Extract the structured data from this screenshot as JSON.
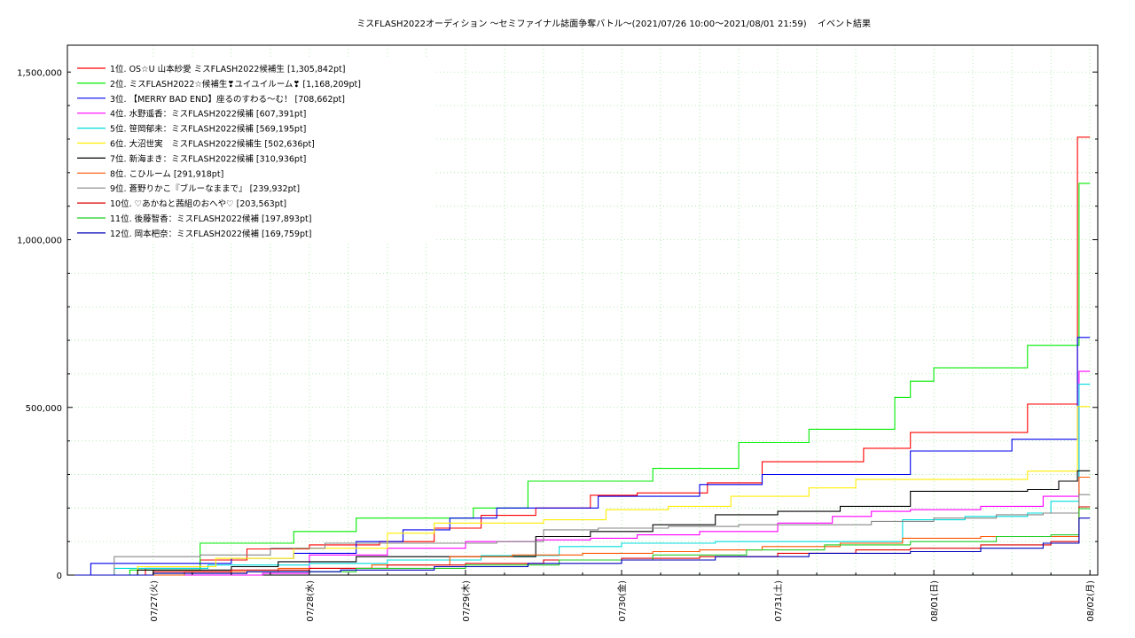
{
  "chart_data": {
    "type": "line",
    "title": "ミスFLASH2022オーディション 〜セミファイナル誌面争奪バトル〜(2021/07/26 10:00〜2021/08/01 21:59)",
    "subtitle": "イベント結果",
    "xlabel": "",
    "ylabel": "",
    "categories": [
      "07/27(火)",
      "07/28(水)",
      "07/29(木)",
      "07/30(金)",
      "07/31(土)",
      "08/01(日)",
      "08/02(月)"
    ],
    "xlim": [
      0.45,
      7.05
    ],
    "ylim": [
      0,
      1580000
    ],
    "y_ticks": [
      0,
      500000,
      1000000,
      1500000
    ],
    "y_tick_labels": [
      "0",
      "500,000",
      "1,000,000",
      "1,500,000"
    ],
    "grid": true,
    "legend_position": "top-left",
    "series": [
      {
        "name": "1位. OS☆U 山本紗愛 ミスFLASH2022候補生 [1,305,842pt]",
        "color": "#ff0000",
        "x": [
          0.5,
          0.95,
          1.3,
          1.6,
          2.0,
          2.45,
          2.8,
          3.1,
          3.45,
          3.8,
          4.1,
          4.55,
          4.9,
          5.2,
          5.55,
          5.85,
          6.3,
          6.6,
          6.75,
          6.92,
          7.0
        ],
        "y": [
          0,
          20000,
          45000,
          78000,
          90000,
          100000,
          140000,
          178000,
          200000,
          238000,
          245000,
          275000,
          338000,
          338000,
          378000,
          425000,
          425000,
          510000,
          510000,
          1305842,
          1305842
        ]
      },
      {
        "name": "2位. ミスFLASH2022☆候補生❣ユイユイルーム❣ [1,168,209pt]",
        "color": "#00ee00",
        "x": [
          0.5,
          0.85,
          1.3,
          1.55,
          1.9,
          2.3,
          2.9,
          3.05,
          3.4,
          3.8,
          4.2,
          4.5,
          4.75,
          5.2,
          5.75,
          5.85,
          6.0,
          6.2,
          6.6,
          6.7,
          6.9,
          6.93,
          7.0
        ],
        "y": [
          0,
          15000,
          95000,
          95000,
          130000,
          170000,
          170000,
          200000,
          280000,
          280000,
          318000,
          318000,
          395000,
          435000,
          530000,
          578000,
          618000,
          618000,
          685000,
          685000,
          685000,
          1168209,
          1168209
        ]
      },
      {
        "name": "3位. 【MERRY BAD END】座るのすわる〜む！ [708,662pt]",
        "color": "#0000ee",
        "x": [
          0.5,
          0.6,
          1.0,
          1.5,
          1.9,
          2.3,
          2.6,
          2.9,
          3.2,
          3.5,
          3.85,
          4.2,
          4.5,
          4.9,
          5.2,
          5.55,
          5.85,
          6.1,
          6.5,
          6.75,
          6.92,
          7.0
        ],
        "y": [
          0,
          35000,
          35000,
          50000,
          65000,
          100000,
          135000,
          170000,
          200000,
          200000,
          235000,
          235000,
          270000,
          300000,
          300000,
          300000,
          370000,
          370000,
          405000,
          405000,
          708662,
          708662
        ]
      },
      {
        "name": "4位. 水野遥香：ミスFLASH2022候補 [607,391pt]",
        "color": "#ff00ff",
        "x": [
          0.5,
          1.7,
          2.0,
          2.5,
          3.0,
          3.45,
          3.8,
          4.1,
          4.5,
          5.0,
          5.35,
          5.6,
          5.85,
          6.3,
          6.7,
          6.93,
          7.0
        ],
        "y": [
          0,
          5000,
          60000,
          80000,
          100000,
          105000,
          110000,
          120000,
          130000,
          155000,
          175000,
          190000,
          195000,
          205000,
          235000,
          607391,
          607391
        ]
      },
      {
        "name": "5位. 笹岡郁未：ミスFLASH2022候補 [569,195pt]",
        "color": "#00dddd",
        "x": [
          0.5,
          0.75,
          1.35,
          2.0,
          2.5,
          3.1,
          3.6,
          4.0,
          4.6,
          5.0,
          5.4,
          5.8,
          6.2,
          6.6,
          6.75,
          6.93,
          7.0
        ],
        "y": [
          0,
          20000,
          30000,
          35000,
          45000,
          58000,
          85000,
          95000,
          100000,
          100000,
          100000,
          165000,
          175000,
          185000,
          220000,
          569195,
          569195
        ]
      },
      {
        "name": "6位. 大沼世実　ミスFLASH2022候補生 [502,636pt]",
        "color": "#ffee00",
        "x": [
          0.5,
          0.9,
          1.4,
          1.9,
          2.5,
          2.8,
          3.2,
          3.5,
          3.9,
          4.3,
          4.7,
          5.2,
          5.5,
          5.85,
          6.3,
          6.6,
          6.75,
          6.92,
          7.0
        ],
        "y": [
          0,
          25000,
          50000,
          80000,
          125000,
          155000,
          155000,
          165000,
          195000,
          205000,
          235000,
          260000,
          285000,
          285000,
          285000,
          310000,
          310000,
          502636,
          502636
        ]
      },
      {
        "name": "7位. 新海まき：ミスFLASH2022候補 [310,936pt]",
        "color": "#000000",
        "x": [
          0.5,
          0.9,
          1.5,
          1.8,
          2.3,
          2.9,
          3.45,
          3.8,
          4.2,
          4.6,
          5.0,
          5.4,
          5.85,
          6.3,
          6.6,
          6.8,
          6.92,
          7.0
        ],
        "y": [
          0,
          15000,
          25000,
          40000,
          55000,
          55000,
          115000,
          130000,
          150000,
          180000,
          190000,
          205000,
          250000,
          250000,
          255000,
          280000,
          310936,
          310936
        ]
      },
      {
        "name": "8位. こひルーム [291,918pt]",
        "color": "#ff5500",
        "x": [
          0.5,
          1.2,
          1.8,
          2.4,
          2.9,
          3.3,
          3.75,
          4.2,
          4.5,
          4.9,
          5.4,
          5.8,
          6.3,
          6.6,
          6.7,
          6.93,
          7.0
        ],
        "y": [
          0,
          10000,
          20000,
          30000,
          55000,
          60000,
          65000,
          70000,
          75000,
          85000,
          95000,
          110000,
          115000,
          115000,
          115000,
          291918,
          291918
        ]
      },
      {
        "name": "9位. 蒼野りかこ『ブルーなままで』 [239,932pt]",
        "color": "#888888",
        "x": [
          0.5,
          0.75,
          1.3,
          1.75,
          2.1,
          2.6,
          3.2,
          3.5,
          3.85,
          4.3,
          4.75,
          5.2,
          5.6,
          6.0,
          6.4,
          6.7,
          6.93,
          7.0
        ],
        "y": [
          0,
          55000,
          60000,
          80000,
          95000,
          95000,
          100000,
          135000,
          140000,
          145000,
          150000,
          150000,
          160000,
          170000,
          180000,
          185000,
          239932,
          239932
        ]
      },
      {
        "name": "10位. ♡あかねと茜組のおへや♡ [203,563pt]",
        "color": "#dd0000",
        "x": [
          0.5,
          1.0,
          1.5,
          2.0,
          2.5,
          3.0,
          3.5,
          4.0,
          4.5,
          5.0,
          5.5,
          5.85,
          6.3,
          6.75,
          6.93,
          7.0
        ],
        "y": [
          0,
          10000,
          15000,
          20000,
          30000,
          35000,
          45000,
          50000,
          55000,
          65000,
          75000,
          80000,
          90000,
          100000,
          203563,
          203563
        ]
      },
      {
        "name": "11位. 後藤智香：ミスFLASH2022候補 [197,893pt]",
        "color": "#22cc22",
        "x": [
          0.5,
          1.0,
          1.6,
          2.3,
          3.0,
          3.6,
          4.2,
          4.8,
          5.3,
          5.85,
          6.4,
          6.75,
          6.93,
          7.0
        ],
        "y": [
          0,
          5000,
          10000,
          20000,
          30000,
          45000,
          60000,
          75000,
          90000,
          100000,
          115000,
          120000,
          197893,
          197893
        ]
      },
      {
        "name": "12位. 岡本杷奈：ミスFLASH2022候補 [169,759pt]",
        "color": "#0000bb",
        "x": [
          0.5,
          1.0,
          1.6,
          2.2,
          2.8,
          3.4,
          4.0,
          4.6,
          5.2,
          5.85,
          6.3,
          6.7,
          6.93,
          7.0
        ],
        "y": [
          0,
          5000,
          10000,
          15000,
          25000,
          35000,
          45000,
          55000,
          65000,
          70000,
          80000,
          95000,
          169759,
          169759
        ]
      }
    ]
  }
}
